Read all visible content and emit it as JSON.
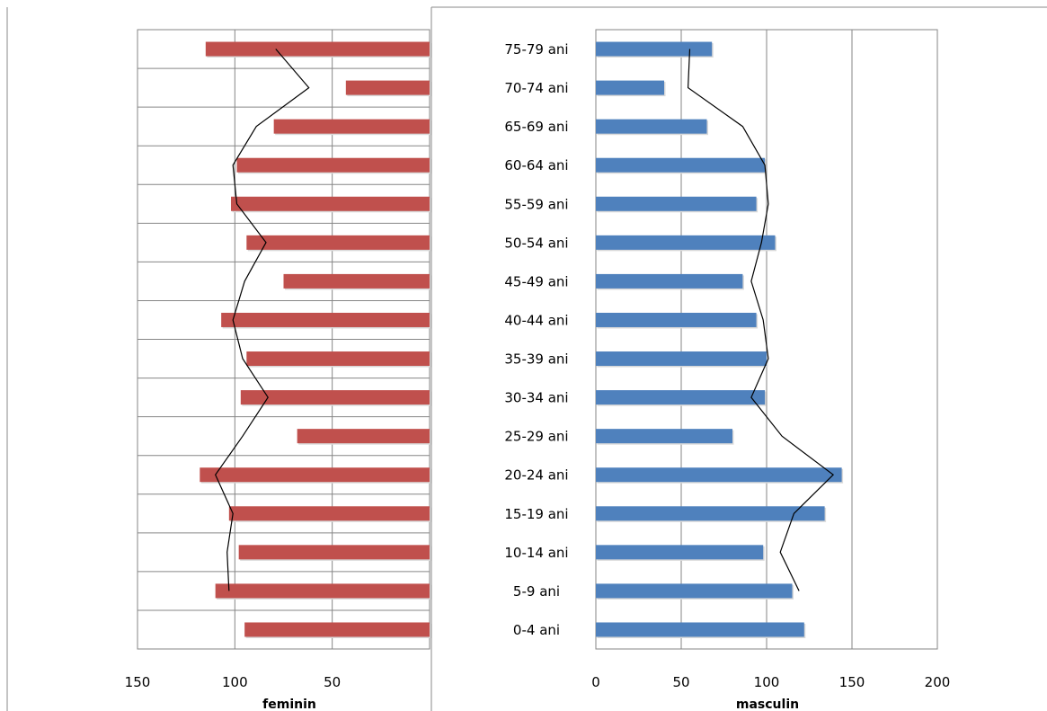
{
  "chart_data": [
    {
      "type": "bar",
      "orientation": "horizontal",
      "direction": "reversed",
      "xlabel": "feminin",
      "xlim": [
        0,
        150
      ],
      "xticks": [
        150,
        100,
        50
      ],
      "grid": true,
      "bar_color": "#c0504d",
      "line_color": "#000000",
      "categories": [
        "0-4 ani",
        "5-9 ani",
        "10-14 ani",
        "15-19 ani",
        "20-24 ani",
        "25-29 ani",
        "30-34 ani",
        "35-39 ani",
        "40-44 ani",
        "45-49 ani",
        "50-54 ani",
        "55-59 ani",
        "60-64 ani",
        "65-69 ani",
        "70-74 ani",
        "75-79 ani"
      ],
      "series": [
        {
          "type": "bar",
          "values": [
            95,
            110,
            98,
            103,
            118,
            68,
            97,
            94,
            107,
            75,
            94,
            102,
            99,
            80,
            43,
            115
          ]
        },
        {
          "type": "line",
          "values": [
            null,
            103,
            104,
            101,
            110,
            96,
            83,
            96,
            101,
            95,
            84,
            99,
            101,
            89,
            62,
            79
          ]
        }
      ]
    },
    {
      "type": "bar",
      "orientation": "horizontal",
      "xlabel": "masculin",
      "xlim": [
        0,
        200
      ],
      "xticks": [
        0,
        50,
        100,
        150,
        200
      ],
      "grid": true,
      "bar_color": "#4f81bd",
      "line_color": "#000000",
      "categories": [
        "0-4 ani",
        "5-9 ani",
        "10-14 ani",
        "15-19 ani",
        "20-24 ani",
        "25-29 ani",
        "30-34 ani",
        "35-39 ani",
        "40-44 ani",
        "45-49 ani",
        "50-54 ani",
        "55-59 ani",
        "60-64 ani",
        "65-69 ani",
        "70-74 ani",
        "75-79 ani"
      ],
      "series": [
        {
          "type": "bar",
          "values": [
            122,
            115,
            98,
            134,
            144,
            80,
            99,
            100,
            94,
            86,
            105,
            94,
            99,
            65,
            40,
            68
          ]
        },
        {
          "type": "line",
          "values": [
            null,
            119,
            108,
            116,
            139,
            109,
            91,
            101,
            98,
            91,
            97,
            101,
            99,
            86,
            54,
            55
          ]
        }
      ]
    }
  ]
}
